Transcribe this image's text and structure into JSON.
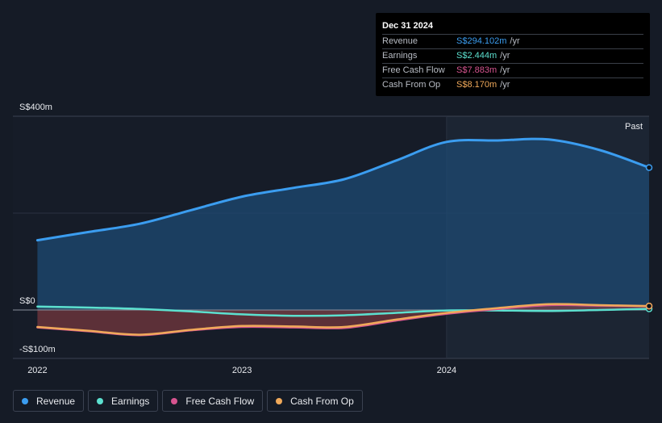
{
  "tooltip": {
    "date": "Dec 31 2024",
    "rows": [
      {
        "label": "Revenue",
        "value": "S$294.102m",
        "unit": "/yr",
        "color": "#3b9df0"
      },
      {
        "label": "Earnings",
        "value": "S$2.444m",
        "unit": "/yr",
        "color": "#5ce0cf"
      },
      {
        "label": "Free Cash Flow",
        "value": "S$7.883m",
        "unit": "/yr",
        "color": "#d6548f"
      },
      {
        "label": "Cash From Op",
        "value": "S$8.170m",
        "unit": "/yr",
        "color": "#f0a95a"
      }
    ]
  },
  "past_label": "Past",
  "legend": [
    {
      "label": "Revenue",
      "color": "#3b9df0"
    },
    {
      "label": "Earnings",
      "color": "#5ce0cf"
    },
    {
      "label": "Free Cash Flow",
      "color": "#d6548f"
    },
    {
      "label": "Cash From Op",
      "color": "#f0a95a"
    }
  ],
  "chart_data": {
    "type": "area",
    "ylim": [
      -100,
      400
    ],
    "y_tick_labels": [
      {
        "value": 400,
        "label": "S$400m"
      },
      {
        "value": 0,
        "label": "S$0"
      },
      {
        "value": -100,
        "label": "-S$100m"
      }
    ],
    "x_tick_labels": [
      {
        "value": 2022.0,
        "label": "2022"
      },
      {
        "value": 2023.0,
        "label": "2023"
      },
      {
        "value": 2024.0,
        "label": "2024"
      }
    ],
    "xlim": [
      2021.88,
      2024.99
    ],
    "highlight_start": 2024.0,
    "series": [
      {
        "name": "Revenue",
        "color": "#3b9df0",
        "x": [
          2022.0,
          2022.25,
          2022.5,
          2022.75,
          2023.0,
          2023.25,
          2023.5,
          2023.75,
          2024.0,
          2024.25,
          2024.5,
          2024.75,
          2024.99
        ],
        "values": [
          144,
          161,
          178,
          206,
          234,
          252,
          270,
          308,
          347,
          350,
          352,
          330,
          294
        ]
      },
      {
        "name": "Earnings",
        "color": "#5ce0cf",
        "x": [
          2022.0,
          2022.25,
          2022.5,
          2022.75,
          2023.0,
          2023.25,
          2023.5,
          2023.75,
          2024.0,
          2024.25,
          2024.5,
          2024.75,
          2024.99
        ],
        "values": [
          7,
          5,
          2,
          -3,
          -9,
          -12,
          -11,
          -6,
          -1,
          -1,
          -2,
          0,
          2.4
        ]
      },
      {
        "name": "Free Cash Flow",
        "color": "#d6548f",
        "x": [
          2022.0,
          2022.25,
          2022.5,
          2022.75,
          2023.0,
          2023.25,
          2023.5,
          2023.75,
          2024.0,
          2024.25,
          2024.5,
          2024.75,
          2024.99
        ],
        "values": [
          -36,
          -44,
          -52,
          -42,
          -35,
          -36,
          -37,
          -22,
          -8,
          2,
          10,
          9,
          7.9
        ]
      },
      {
        "name": "Cash From Op",
        "color": "#f0a95a",
        "x": [
          2022.0,
          2022.25,
          2022.5,
          2022.75,
          2023.0,
          2023.25,
          2023.5,
          2023.75,
          2024.0,
          2024.25,
          2024.5,
          2024.75,
          2024.99
        ],
        "values": [
          -35,
          -43,
          -51,
          -41,
          -33,
          -34,
          -35,
          -20,
          -6,
          4,
          12,
          10,
          8.2
        ]
      }
    ]
  }
}
